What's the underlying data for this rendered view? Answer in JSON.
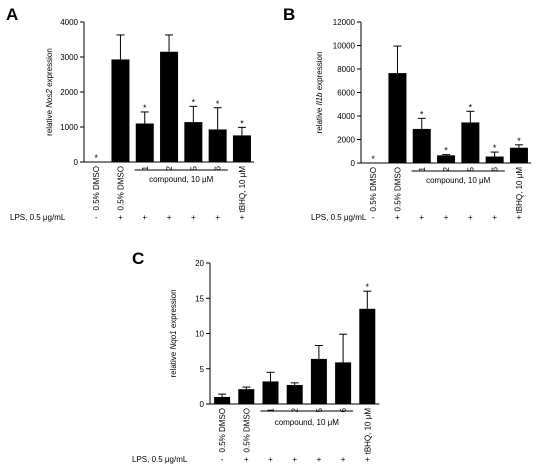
{
  "chart_data": [
    {
      "panel": "A",
      "type": "bar",
      "ylabel": [
        "relative ",
        "Nos2",
        " expression"
      ],
      "ylim": [
        0,
        4000
      ],
      "yticks": [
        0,
        1000,
        2000,
        3000,
        4000
      ],
      "categories": [
        "0.5% DMSO",
        "0.5% DMSO",
        "1",
        "2",
        "5",
        "6",
        "tBHQ, 10 μM"
      ],
      "values": [
        0,
        2930,
        1100,
        3150,
        1140,
        930,
        760
      ],
      "errors": [
        0,
        700,
        330,
        480,
        450,
        620,
        230
      ],
      "significance": [
        "*",
        "",
        "*",
        "",
        "*",
        "*",
        "*"
      ],
      "group_label": "compound, 10 μM",
      "lps_label": "LPS, 0.5 μg/mL",
      "lps": [
        "-",
        "+",
        "+",
        "+",
        "+",
        "+",
        "+"
      ]
    },
    {
      "panel": "B",
      "type": "bar",
      "ylabel": [
        "relative ",
        "Il1b",
        " expression"
      ],
      "ylim": [
        0,
        12000
      ],
      "yticks": [
        0,
        2000,
        4000,
        6000,
        8000,
        10000,
        12000
      ],
      "categories": [
        "0.5% DMSO",
        "0.5% DMSO",
        "1",
        "2",
        "5",
        "6",
        "tBHQ, 10 μM"
      ],
      "values": [
        0,
        7650,
        2900,
        650,
        3450,
        550,
        1300
      ],
      "errors": [
        0,
        2300,
        900,
        60,
        950,
        380,
        250
      ],
      "significance": [
        "*",
        "",
        "*",
        "*",
        "*",
        "*",
        "*"
      ],
      "group_label": "compound, 10 μM",
      "lps_label": "LPS, 0.5 μg/mL",
      "lps": [
        "-",
        "+",
        "+",
        "+",
        "+",
        "+",
        "+"
      ]
    },
    {
      "panel": "C",
      "type": "bar",
      "ylabel": [
        "relative ",
        "Nqo1",
        " expression"
      ],
      "ylim": [
        0,
        20
      ],
      "yticks": [
        0,
        5,
        10,
        15,
        20
      ],
      "categories": [
        "0.5% DMSO",
        "0.5% DMSO",
        "1",
        "2",
        "5",
        "6",
        "tBHQ, 10 μM"
      ],
      "values": [
        1.0,
        2.1,
        3.2,
        2.7,
        6.4,
        5.9,
        13.5
      ],
      "errors": [
        0.4,
        0.3,
        1.3,
        0.3,
        1.9,
        4.0,
        2.5
      ],
      "significance": [
        "",
        "",
        "",
        "",
        "",
        "",
        "*"
      ],
      "group_label": "compound, 10 μM",
      "lps_label": "LPS, 0.5 μg/mL",
      "lps": [
        "-",
        "+",
        "+",
        "+",
        "+",
        "+",
        "+"
      ]
    }
  ]
}
